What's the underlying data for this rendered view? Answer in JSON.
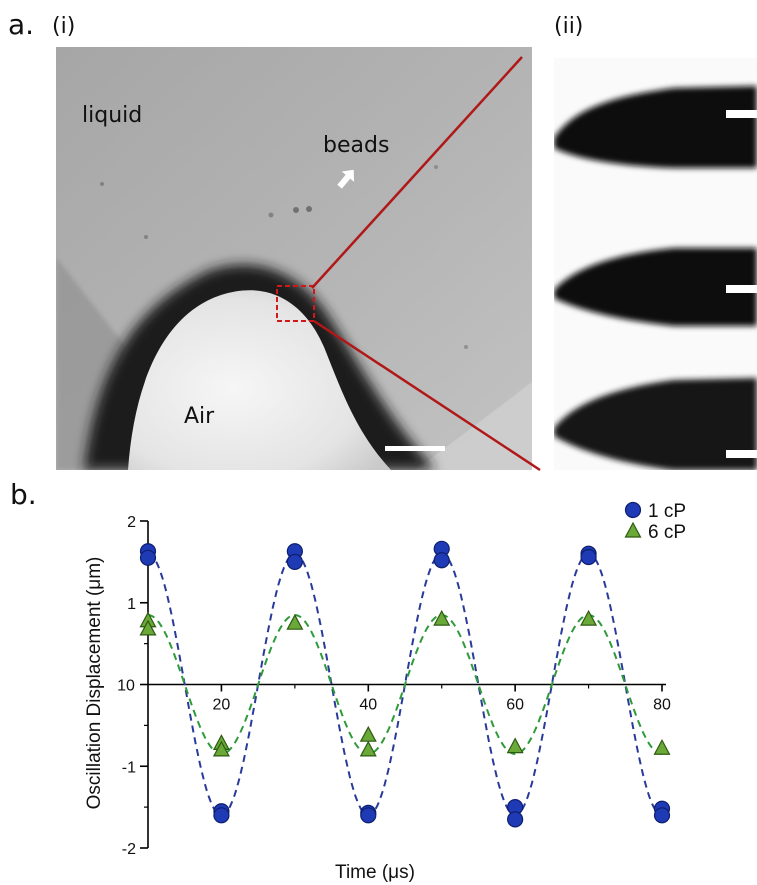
{
  "figure": {
    "panel_a": {
      "letter": "a.",
      "sub_i": "(i)",
      "sub_ii": "(ii)",
      "labels": {
        "liquid": "liquid",
        "beads": "beads",
        "air": "Air"
      }
    },
    "panel_b": {
      "letter": "b."
    }
  },
  "colors": {
    "series_1cP": "#1f3ab5",
    "series_6cP": "#6aa838",
    "dash_1cP": "#2a3a9a",
    "dash_6cP": "#2f9a3a",
    "zoom_lines": "#b01818"
  },
  "chart_data": {
    "type": "scatter",
    "xlabel": "Time (μs)",
    "ylabel": "Oscillation Displacement (μm)",
    "xlim": [
      10,
      80
    ],
    "ylim": [
      -2,
      2
    ],
    "x_ticks": [
      "10",
      "20",
      "40",
      "60",
      "80"
    ],
    "y_ticks": [
      "2",
      "1",
      "-1",
      "-2"
    ],
    "legend_position": "top-right",
    "series": [
      {
        "name": "1 cP",
        "marker": "circle",
        "points": [
          [
            10,
            1.63
          ],
          [
            10,
            1.55
          ],
          [
            20,
            -1.55
          ],
          [
            20,
            -1.6
          ],
          [
            30,
            1.63
          ],
          [
            30,
            1.5
          ],
          [
            40,
            -1.57
          ],
          [
            40,
            -1.6
          ],
          [
            50,
            1.66
          ],
          [
            50,
            1.52
          ],
          [
            60,
            -1.5
          ],
          [
            60,
            -1.65
          ],
          [
            70,
            1.6
          ],
          [
            70,
            1.56
          ],
          [
            80,
            -1.52
          ],
          [
            80,
            -1.6
          ]
        ],
        "fit": {
          "mean": 0,
          "amplitude": 1.6,
          "period": 20,
          "peak_at": 10
        }
      },
      {
        "name": "6 cP",
        "marker": "triangle",
        "points": [
          [
            10,
            0.78
          ],
          [
            10,
            0.68
          ],
          [
            20,
            -0.72
          ],
          [
            20,
            -0.8
          ],
          [
            30,
            0.75
          ],
          [
            40,
            -0.62
          ],
          [
            40,
            -0.8
          ],
          [
            50,
            0.8
          ],
          [
            60,
            -0.76
          ],
          [
            70,
            0.8
          ],
          [
            80,
            -0.78
          ]
        ],
        "fit": {
          "mean": 0,
          "amplitude": 0.85,
          "period": 20,
          "peak_at": 30
        }
      }
    ]
  }
}
